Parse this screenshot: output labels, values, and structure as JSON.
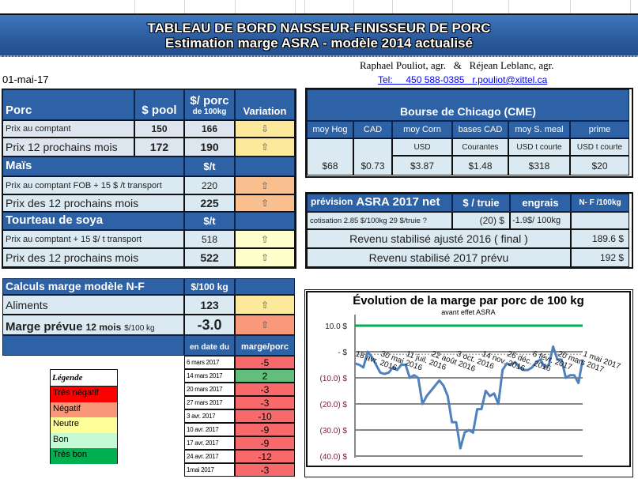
{
  "header": {
    "title": "TABLEAU DE BORD NAISSEUR-FINISSEUR DE PORC",
    "subtitle": "Estimation marge ASRA - modèle 2014 actualisé",
    "authors": "Raphael Pouliot, agr.   &   Réjean Leblanc, agr.",
    "contact": "Tel:     450 588-0385   r.pouliot@xittel.ca",
    "date": "01-mai-17"
  },
  "porc": {
    "title": "Porc",
    "col_pool": "$ pool",
    "col_porc": "$/ porc",
    "col_porc_sub": "de 100kg",
    "col_var": "Variation",
    "rows": [
      {
        "label": "Prix au comptant",
        "pool": "150",
        "porc": "166",
        "arrow": "⇩"
      },
      {
        "label": "Prix 12 prochains mois",
        "pool": "172",
        "porc": "190",
        "arrow": "⇧"
      }
    ]
  },
  "mais": {
    "title": "Maïs",
    "unit": "$/t",
    "rows": [
      {
        "label": "Prix au comptant  FOB + 15 $ /t transport",
        "value": "220",
        "arrow": "⇧"
      },
      {
        "label": "Prix des 12 prochains mois",
        "value": "225",
        "arrow": "⇧"
      }
    ]
  },
  "soya": {
    "title": "Tourteau de soya",
    "unit": "$/t",
    "rows": [
      {
        "label": "Prix au comptant  + 15 $/ t  transport",
        "value": "518",
        "arrow": "⇧"
      },
      {
        "label": "Prix des 12 prochains mois",
        "value": "522",
        "arrow": "⇧"
      }
    ]
  },
  "calculs": {
    "title": "Calculs marge  modèle N-F",
    "unit": "$/100 kg",
    "aliments_label": "Aliments",
    "aliments": "123",
    "aliments_arrow": "⇧",
    "marge_label": "Marge prévue",
    "marge_sub": "12 mois",
    "marge_unit": "$/100 kg",
    "marge": "-3.0",
    "marge_arrow": "⇧",
    "col_date": "en date du",
    "col_marge": "marge/porc",
    "history": [
      {
        "date": "6 mars 2017",
        "v": "-5"
      },
      {
        "date": "14 mars 2017",
        "v": "2"
      },
      {
        "date": "20 mars 2017",
        "v": "-3"
      },
      {
        "date": "27 mars 2017",
        "v": "-3"
      },
      {
        "date": "3 avr. 2017",
        "v": "-10"
      },
      {
        "date": "10 avr. 2017",
        "v": "-9"
      },
      {
        "date": "17 avr. 2017",
        "v": "-9"
      },
      {
        "date": "24 avr. 2017",
        "v": "-12"
      },
      {
        "date": "1mai 2017",
        "v": "-3"
      }
    ]
  },
  "legend": {
    "title": "Légende",
    "items": [
      {
        "label": "Très négatif",
        "color": "#ff0000"
      },
      {
        "label": "Négatif",
        "color": "#f79679"
      },
      {
        "label": "Neutre",
        "color": "#ffff99"
      },
      {
        "label": "Bon",
        "color": "#c4fbd4"
      },
      {
        "label": "Très bon",
        "color": "#00b050"
      }
    ]
  },
  "cme": {
    "title": "Bourse de Chicago (CME)",
    "cols": [
      "moy Hog",
      "CAD",
      "moy Corn",
      "bases CAD",
      "moy S. meal",
      "prime"
    ],
    "units": [
      "",
      "",
      "USD",
      "Courantes",
      "USD t courte",
      "USD t courte"
    ],
    "values": [
      "$68",
      "$0.73",
      "$3.87",
      "$1.48",
      "$318",
      "$20"
    ]
  },
  "asra": {
    "title_a": "prévision",
    "title_b": "ASRA 2017 net",
    "col_truie": "$ / truie",
    "col_engrais": "engrais",
    "col_nf": "N- F /100kg",
    "cotisation": "cotisation 2.85 $/100kg  29 $/truie ?",
    "truie": "(20) $",
    "engrais": "-1.9$/ 100kg",
    "rev2016_label": "Revenu stabilisé ajusté 2016 ( final )",
    "rev2016": "189.6  $",
    "rev2017_label": "Revenu stabilisé 2017 prévu",
    "rev2017": "192  $"
  },
  "chart_data": {
    "type": "line",
    "title": "Évolution de la marge par porc de 100 kg",
    "subtitle": "avant effet ASRA",
    "ylim": [
      -40,
      10
    ],
    "yticks": [
      "10.0  $",
      "-    $",
      "(10.0) $",
      "(20.0) $",
      "(30.0) $",
      "(40.0) $"
    ],
    "ytick_values": [
      10,
      0,
      -10,
      -20,
      -30,
      -40
    ],
    "xtick_labels": [
      "18 avr. 2016",
      "30 mai 2016",
      "11 juil. 2016",
      "22 août 2016",
      "3 oct. 2016",
      "14 nov. 2016",
      "26 déc. 2016",
      "6 févr. 2017",
      "20 mars 2017",
      "1 mai 2017"
    ],
    "series": [
      {
        "color": "#4f81bd",
        "values": [
          -4.5,
          -5,
          -6,
          0,
          -2,
          -5,
          -8,
          -8.5,
          -8,
          -6,
          -7,
          -5,
          -5,
          -10,
          -9,
          -10,
          -20,
          -17,
          -15,
          -13,
          -11,
          -13,
          -17,
          -27,
          -27,
          -37,
          -31,
          -30,
          -31,
          -22,
          -22,
          -15,
          -17,
          -16,
          -20,
          -7,
          -4.5,
          -5,
          -4,
          -6,
          -7,
          -7,
          -6,
          -4,
          -3,
          -6,
          -5,
          2,
          -3,
          -3,
          -10,
          -9,
          -9,
          -12,
          -3
        ]
      },
      {
        "color": "#00b050",
        "values": "constant 10"
      }
    ]
  }
}
